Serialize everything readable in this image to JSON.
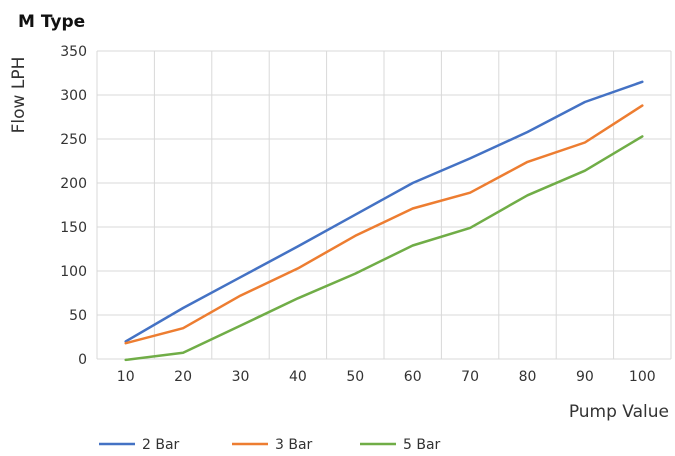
{
  "chart_data": {
    "type": "line",
    "title": "M Type",
    "xlabel": "Pump Value",
    "ylabel": "Flow LPH",
    "x": [
      10,
      20,
      30,
      40,
      50,
      60,
      70,
      80,
      90,
      100
    ],
    "xlim": [
      5,
      105
    ],
    "ylim": [
      0,
      350
    ],
    "yticks": [
      0,
      50,
      100,
      150,
      200,
      250,
      300,
      350
    ],
    "grid": true,
    "legend": "bottom",
    "series": [
      {
        "name": "2 Bar",
        "color": "#4472c4",
        "values": [
          20,
          58,
          93,
          128,
          164,
          200,
          228,
          258,
          292,
          315
        ]
      },
      {
        "name": "3 Bar",
        "color": "#ed7d31",
        "values": [
          18,
          35,
          72,
          103,
          140,
          171,
          189,
          224,
          246,
          288
        ]
      },
      {
        "name": "5 Bar",
        "color": "#70ad47",
        "values": [
          -1,
          7,
          38,
          69,
          97,
          129,
          149,
          186,
          214,
          253
        ]
      }
    ]
  }
}
